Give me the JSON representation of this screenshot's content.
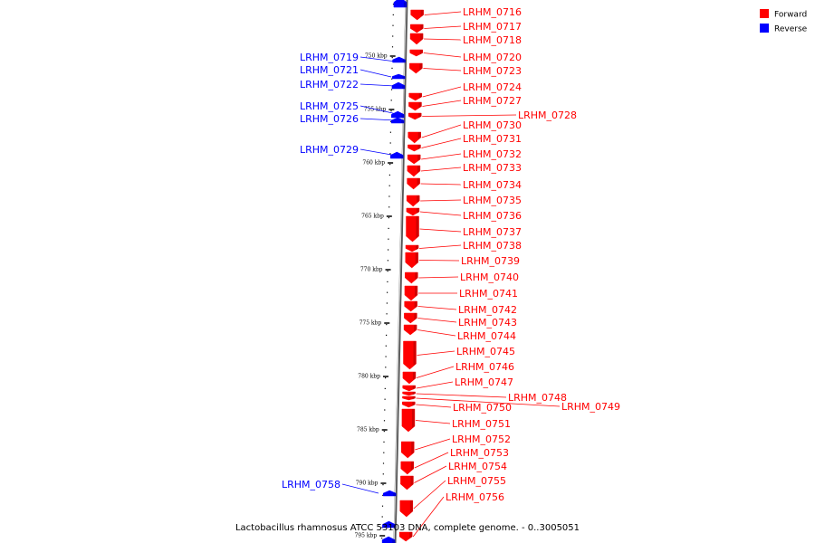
{
  "legend": {
    "forward_label": "Forward",
    "reverse_label": "Reverse",
    "forward_color": "#ff0000",
    "reverse_color": "#0000ff"
  },
  "caption": "Lactobacillus rhamnosus ATCC 53103 DNA, complete genome. - 0..3005051",
  "scale_ticks": [
    "750 kbp",
    "755 kbp",
    "760 kbp",
    "765 kbp",
    "770 kbp",
    "775 kbp",
    "780 kbp",
    "785 kbp",
    "790 kbp",
    "795 kbp"
  ],
  "forward_genes": [
    "LRHM_0716",
    "LRHM_0717",
    "LRHM_0718",
    "LRHM_0720",
    "LRHM_0723",
    "LRHM_0724",
    "LRHM_0727",
    "LRHM_0728",
    "LRHM_0730",
    "LRHM_0731",
    "LRHM_0732",
    "LRHM_0733",
    "LRHM_0734",
    "LRHM_0735",
    "LRHM_0736",
    "LRHM_0737",
    "LRHM_0738",
    "LRHM_0739",
    "LRHM_0740",
    "LRHM_0741",
    "LRHM_0742",
    "LRHM_0743",
    "LRHM_0744",
    "LRHM_0745",
    "LRHM_0746",
    "LRHM_0747",
    "LRHM_0748",
    "LRHM_0749",
    "LRHM_0750",
    "LRHM_0751",
    "LRHM_0752",
    "LRHM_0753",
    "LRHM_0754",
    "LRHM_0755",
    "LRHM_0756"
  ],
  "reverse_genes": [
    "LRHM_0719",
    "LRHM_0721",
    "LRHM_0722",
    "LRHM_0725",
    "LRHM_0726",
    "LRHM_0729",
    "LRHM_0758"
  ]
}
